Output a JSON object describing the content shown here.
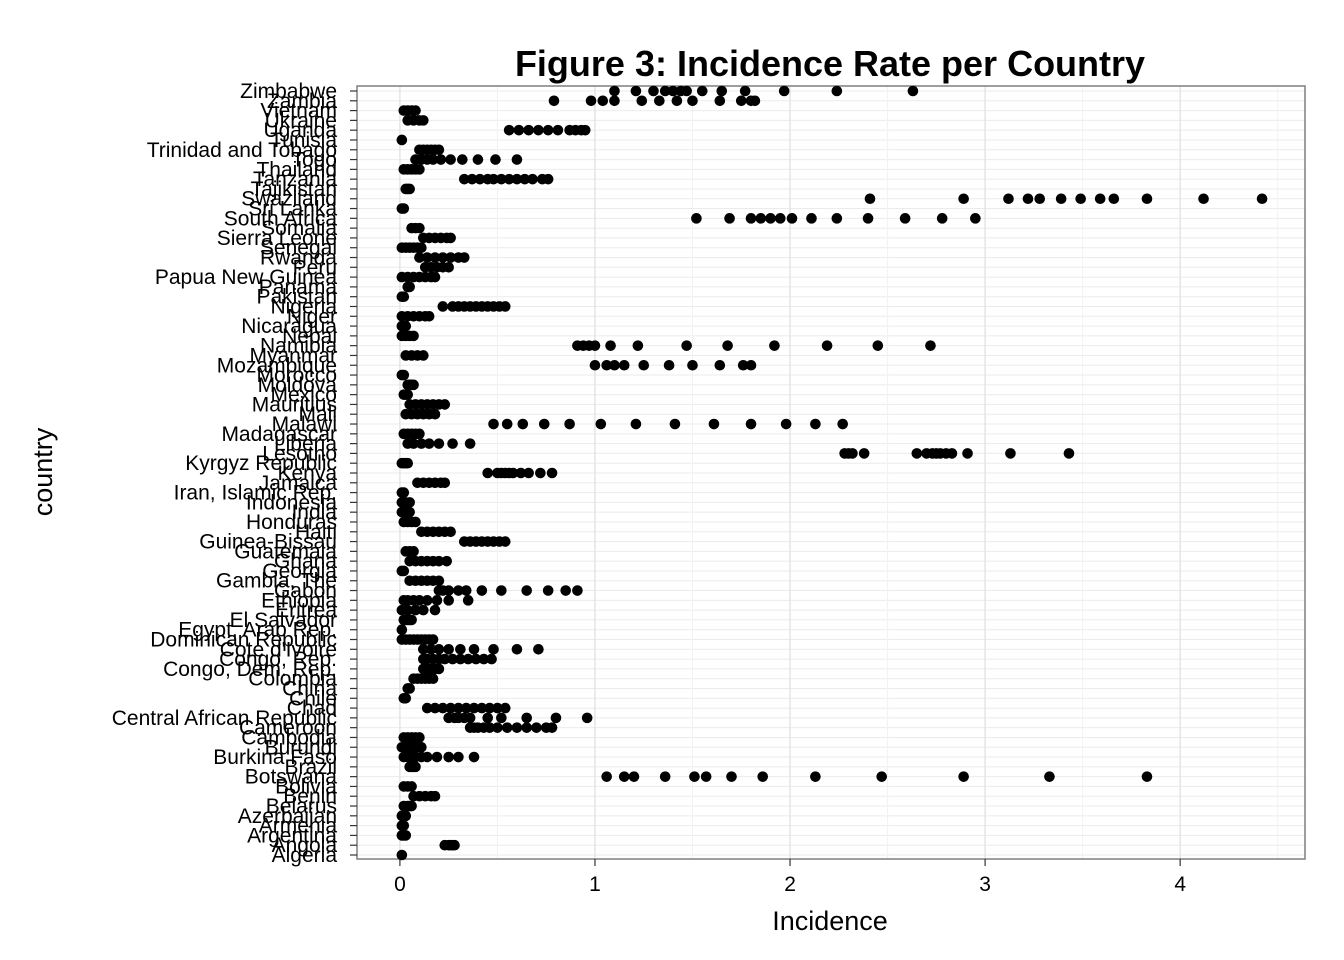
{
  "chart_data": {
    "type": "scatter",
    "title": "Figure 3: Incidence Rate per Country",
    "xlabel": "Incidence",
    "ylabel": "country",
    "xlim": [
      -0.22,
      4.64
    ],
    "xticks": [
      0,
      1,
      2,
      3,
      4
    ],
    "grid": true,
    "legend": "none",
    "point_color": "#000000",
    "categories": [
      "Algeria",
      "Angola",
      "Argentina",
      "Armenia",
      "Azerbaijan",
      "Belarus",
      "Benin",
      "Bolivia",
      "Botswana",
      "Brazil",
      "Burkina Faso",
      "Burundi",
      "Cambodia",
      "Cameroon",
      "Central African Republic",
      "Chad",
      "Chile",
      "China",
      "Colombia",
      "Congo, Dem. Rep.",
      "Congo, Rep.",
      "Cote d'Ivoire",
      "Dominican Republic",
      "Egypt, Arab Rep.",
      "El Salvador",
      "Eritrea",
      "Ethiopia",
      "Gabon",
      "Gambia, The",
      "Georgia",
      "Ghana",
      "Guatemala",
      "Guinea-Bissau",
      "Haiti",
      "Honduras",
      "India",
      "Indonesia",
      "Iran, Islamic Rep.",
      "Jamaica",
      "Kenya",
      "Kyrgyz Republic",
      "Lesotho",
      "Liberia",
      "Madagascar",
      "Malawi",
      "Mali",
      "Mauritius",
      "Mexico",
      "Moldova",
      "Morocco",
      "Mozambique",
      "Myanmar",
      "Namibia",
      "Nepal",
      "Nicaragua",
      "Niger",
      "Nigeria",
      "Pakistan",
      "Panama",
      "Papua New Guinea",
      "Peru",
      "Rwanda",
      "Senegal",
      "Sierra Leone",
      "Somalia",
      "South Africa",
      "Sri Lanka",
      "Swaziland",
      "Tajikistan",
      "Tanzania",
      "Thailand",
      "Togo",
      "Trinidad and Tobago",
      "Tunisia",
      "Uganda",
      "Ukraine",
      "Vietnam",
      "Zambia",
      "Zimbabwe"
    ],
    "series": [
      {
        "category": "Algeria",
        "values": [
          0.01
        ]
      },
      {
        "category": "Angola",
        "values": [
          0.23,
          0.25,
          0.26,
          0.27,
          0.28
        ]
      },
      {
        "category": "Argentina",
        "values": [
          0.01,
          0.02,
          0.03
        ]
      },
      {
        "category": "Armenia",
        "values": [
          0.01,
          0.02
        ]
      },
      {
        "category": "Azerbaijan",
        "values": [
          0.01,
          0.02,
          0.03
        ]
      },
      {
        "category": "Belarus",
        "values": [
          0.02,
          0.04,
          0.05,
          0.06
        ]
      },
      {
        "category": "Benin",
        "values": [
          0.07,
          0.1,
          0.13,
          0.16,
          0.18
        ]
      },
      {
        "category": "Bolivia",
        "values": [
          0.02,
          0.04,
          0.06
        ]
      },
      {
        "category": "Botswana",
        "values": [
          1.06,
          1.15,
          1.2,
          1.36,
          1.51,
          1.57,
          1.7,
          1.86,
          2.13,
          2.47,
          2.89,
          3.33,
          3.83
        ]
      },
      {
        "category": "Brazil",
        "values": [
          0.05,
          0.06,
          0.07,
          0.08
        ]
      },
      {
        "category": "Burkina Faso",
        "values": [
          0.02,
          0.04,
          0.06,
          0.08,
          0.11,
          0.14,
          0.19,
          0.25,
          0.3,
          0.38
        ]
      },
      {
        "category": "Burundi",
        "values": [
          0.01,
          0.03,
          0.05,
          0.07,
          0.09,
          0.11
        ]
      },
      {
        "category": "Cambodia",
        "values": [
          0.02,
          0.04,
          0.06,
          0.08,
          0.1
        ]
      },
      {
        "category": "Cameroon",
        "values": [
          0.36,
          0.38,
          0.4,
          0.43,
          0.46,
          0.5,
          0.55,
          0.6,
          0.65,
          0.7,
          0.75,
          0.78
        ]
      },
      {
        "category": "Central African Republic",
        "values": [
          0.25,
          0.28,
          0.3,
          0.33,
          0.36,
          0.45,
          0.52,
          0.65,
          0.8,
          0.96
        ]
      },
      {
        "category": "Chad",
        "values": [
          0.14,
          0.18,
          0.22,
          0.26,
          0.3,
          0.34,
          0.38,
          0.42,
          0.46,
          0.5,
          0.54
        ]
      },
      {
        "category": "Chile",
        "values": [
          0.02,
          0.03
        ]
      },
      {
        "category": "China",
        "values": [
          0.04,
          0.05
        ]
      },
      {
        "category": "Colombia",
        "values": [
          0.07,
          0.09,
          0.11,
          0.13,
          0.15,
          0.17
        ]
      },
      {
        "category": "Congo, Dem. Rep.",
        "values": [
          0.12,
          0.14,
          0.16,
          0.18,
          0.2
        ]
      },
      {
        "category": "Congo, Rep.",
        "values": [
          0.12,
          0.14,
          0.17,
          0.2,
          0.23,
          0.27,
          0.31,
          0.35,
          0.39,
          0.43,
          0.47
        ]
      },
      {
        "category": "Cote d'Ivoire",
        "values": [
          0.12,
          0.16,
          0.2,
          0.25,
          0.31,
          0.38,
          0.48,
          0.6,
          0.71
        ]
      },
      {
        "category": "Dominican Republic",
        "values": [
          0.01,
          0.03,
          0.05,
          0.07,
          0.09,
          0.11,
          0.13,
          0.15,
          0.17
        ]
      },
      {
        "category": "Egypt, Arab Rep.",
        "values": [
          0.01
        ]
      },
      {
        "category": "El Salvador",
        "values": [
          0.02,
          0.03,
          0.04,
          0.05,
          0.06
        ]
      },
      {
        "category": "Eritrea",
        "values": [
          0.01,
          0.04,
          0.08,
          0.12,
          0.18
        ]
      },
      {
        "category": "Ethiopia",
        "values": [
          0.02,
          0.04,
          0.07,
          0.1,
          0.14,
          0.19,
          0.25,
          0.35
        ]
      },
      {
        "category": "Gabon",
        "values": [
          0.2,
          0.22,
          0.25,
          0.3,
          0.34,
          0.42,
          0.52,
          0.65,
          0.76,
          0.85,
          0.91
        ]
      },
      {
        "category": "Gambia, The",
        "values": [
          0.05,
          0.08,
          0.11,
          0.14,
          0.17,
          0.2
        ]
      },
      {
        "category": "Georgia",
        "values": [
          0.01,
          0.02
        ]
      },
      {
        "category": "Ghana",
        "values": [
          0.05,
          0.08,
          0.11,
          0.14,
          0.17,
          0.2,
          0.24
        ]
      },
      {
        "category": "Guatemala",
        "values": [
          0.03,
          0.05,
          0.07
        ]
      },
      {
        "category": "Guinea-Bissau",
        "values": [
          0.33,
          0.36,
          0.39,
          0.42,
          0.45,
          0.48,
          0.51,
          0.54
        ]
      },
      {
        "category": "Haiti",
        "values": [
          0.11,
          0.14,
          0.17,
          0.2,
          0.23,
          0.26
        ]
      },
      {
        "category": "Honduras",
        "values": [
          0.02,
          0.04,
          0.06,
          0.08
        ]
      },
      {
        "category": "India",
        "values": [
          0.01,
          0.03,
          0.05
        ]
      },
      {
        "category": "Indonesia",
        "values": [
          0.01,
          0.03,
          0.05
        ]
      },
      {
        "category": "Iran, Islamic Rep.",
        "values": [
          0.01,
          0.02
        ]
      },
      {
        "category": "Jamaica",
        "values": [
          0.09,
          0.12,
          0.15,
          0.18,
          0.21,
          0.23
        ]
      },
      {
        "category": "Kenya",
        "values": [
          0.45,
          0.5,
          0.52,
          0.54,
          0.56,
          0.58,
          0.62,
          0.66,
          0.72,
          0.78
        ]
      },
      {
        "category": "Kyrgyz Republic",
        "values": [
          0.01,
          0.02,
          0.03,
          0.04
        ]
      },
      {
        "category": "Lesotho",
        "values": [
          2.28,
          2.3,
          2.32,
          2.38,
          2.65,
          2.7,
          2.73,
          2.75,
          2.77,
          2.8,
          2.83,
          2.91,
          3.13,
          3.43
        ]
      },
      {
        "category": "Liberia",
        "values": [
          0.04,
          0.07,
          0.11,
          0.15,
          0.2,
          0.27,
          0.36
        ]
      },
      {
        "category": "Madagascar",
        "values": [
          0.02,
          0.04,
          0.06,
          0.08,
          0.1
        ]
      },
      {
        "category": "Malawi",
        "values": [
          0.48,
          0.55,
          0.63,
          0.74,
          0.87,
          1.03,
          1.21,
          1.41,
          1.61,
          1.8,
          1.98,
          2.13,
          2.27
        ]
      },
      {
        "category": "Mali",
        "values": [
          0.03,
          0.06,
          0.09,
          0.12,
          0.15,
          0.18
        ]
      },
      {
        "category": "Mauritius",
        "values": [
          0.05,
          0.08,
          0.11,
          0.14,
          0.17,
          0.2,
          0.23
        ]
      },
      {
        "category": "Mexico",
        "values": [
          0.02,
          0.03,
          0.04
        ]
      },
      {
        "category": "Moldova",
        "values": [
          0.04,
          0.05,
          0.06,
          0.07
        ]
      },
      {
        "category": "Morocco",
        "values": [
          0.01,
          0.02
        ]
      },
      {
        "category": "Mozambique",
        "values": [
          1.0,
          1.06,
          1.1,
          1.15,
          1.25,
          1.38,
          1.5,
          1.64,
          1.76,
          1.8
        ]
      },
      {
        "category": "Myanmar",
        "values": [
          0.03,
          0.06,
          0.09,
          0.12
        ]
      },
      {
        "category": "Namibia",
        "values": [
          0.91,
          0.94,
          0.97,
          1.0,
          1.08,
          1.22,
          1.47,
          1.68,
          1.92,
          2.19,
          2.45,
          2.72
        ]
      },
      {
        "category": "Nepal",
        "values": [
          0.01,
          0.03,
          0.05,
          0.07
        ]
      },
      {
        "category": "Nicaragua",
        "values": [
          0.01,
          0.02,
          0.03
        ]
      },
      {
        "category": "Niger",
        "values": [
          0.01,
          0.04,
          0.07,
          0.1,
          0.13,
          0.15
        ]
      },
      {
        "category": "Nigeria",
        "values": [
          0.22,
          0.27,
          0.3,
          0.33,
          0.36,
          0.39,
          0.42,
          0.45,
          0.48,
          0.51,
          0.54
        ]
      },
      {
        "category": "Pakistan",
        "values": [
          0.01,
          0.02
        ]
      },
      {
        "category": "Panama",
        "values": [
          0.04,
          0.05
        ]
      },
      {
        "category": "Papua New Guinea",
        "values": [
          0.01,
          0.04,
          0.07,
          0.1,
          0.13,
          0.16,
          0.18
        ]
      },
      {
        "category": "Peru",
        "values": [
          0.13,
          0.16,
          0.19,
          0.22,
          0.25
        ]
      },
      {
        "category": "Rwanda",
        "values": [
          0.1,
          0.14,
          0.18,
          0.22,
          0.26,
          0.3,
          0.33
        ]
      },
      {
        "category": "Senegal",
        "values": [
          0.01,
          0.03,
          0.05,
          0.07,
          0.09,
          0.11
        ]
      },
      {
        "category": "Sierra Leone",
        "values": [
          0.12,
          0.15,
          0.18,
          0.21,
          0.24,
          0.26
        ]
      },
      {
        "category": "Somalia",
        "values": [
          0.06,
          0.08,
          0.1
        ]
      },
      {
        "category": "South Africa",
        "values": [
          1.52,
          1.69,
          1.8,
          1.85,
          1.9,
          1.95,
          2.01,
          2.11,
          2.24,
          2.4,
          2.59,
          2.78,
          2.95
        ]
      },
      {
        "category": "Sri Lanka",
        "values": [
          0.01,
          0.02
        ]
      },
      {
        "category": "Swaziland",
        "values": [
          2.41,
          2.89,
          3.12,
          3.22,
          3.28,
          3.39,
          3.49,
          3.59,
          3.66,
          3.83,
          4.12,
          4.42
        ]
      },
      {
        "category": "Tajikistan",
        "values": [
          0.03,
          0.04,
          0.05
        ]
      },
      {
        "category": "Tanzania",
        "values": [
          0.33,
          0.37,
          0.41,
          0.45,
          0.48,
          0.52,
          0.56,
          0.6,
          0.64,
          0.68,
          0.73,
          0.76
        ]
      },
      {
        "category": "Thailand",
        "values": [
          0.02,
          0.04,
          0.06,
          0.08,
          0.1
        ]
      },
      {
        "category": "Togo",
        "values": [
          0.08,
          0.11,
          0.14,
          0.17,
          0.21,
          0.26,
          0.32,
          0.4,
          0.49,
          0.6
        ]
      },
      {
        "category": "Trinidad and Tobago",
        "values": [
          0.1,
          0.12,
          0.14,
          0.16,
          0.18,
          0.2
        ]
      },
      {
        "category": "Tunisia",
        "values": [
          0.01
        ]
      },
      {
        "category": "Uganda",
        "values": [
          0.56,
          0.61,
          0.66,
          0.71,
          0.76,
          0.81,
          0.87,
          0.9,
          0.93,
          0.95
        ]
      },
      {
        "category": "Ukraine",
        "values": [
          0.04,
          0.07,
          0.1,
          0.12
        ]
      },
      {
        "category": "Vietnam",
        "values": [
          0.02,
          0.04,
          0.06,
          0.08
        ]
      },
      {
        "category": "Zambia",
        "values": [
          0.79,
          0.98,
          1.04,
          1.1,
          1.24,
          1.33,
          1.42,
          1.5,
          1.64,
          1.75,
          1.8,
          1.82
        ]
      },
      {
        "category": "Zimbabwe",
        "values": [
          1.1,
          1.21,
          1.3,
          1.36,
          1.4,
          1.44,
          1.47,
          1.55,
          1.65,
          1.77,
          1.97,
          2.24,
          2.63
        ]
      }
    ]
  }
}
